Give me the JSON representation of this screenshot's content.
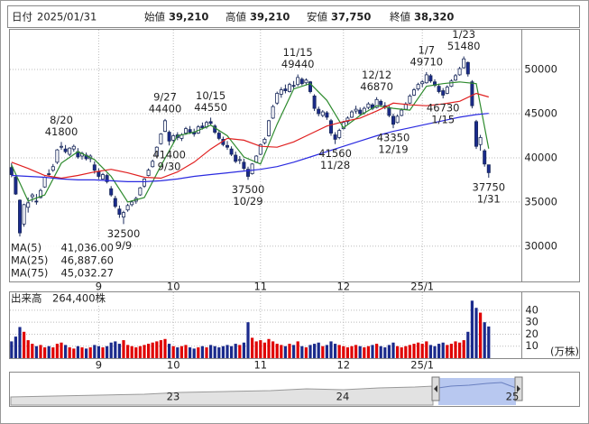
{
  "chart_data": {
    "type": "candlestick",
    "header": {
      "date_label": "日付",
      "date": "2025/01/31",
      "items": [
        {
          "name": "始値",
          "value": "39,210",
          "color": "#111111"
        },
        {
          "name": "高値",
          "value": "39,210",
          "color": "#e00000"
        },
        {
          "name": "安値",
          "value": "37,750",
          "color": "#008000"
        },
        {
          "name": "終値",
          "value": "38,320",
          "color": "#111111"
        }
      ]
    },
    "ylim": [
      26000,
      54500
    ],
    "yticks": [
      30000,
      35000,
      40000,
      45000,
      50000
    ],
    "grid": true,
    "up_color": "#ffffff",
    "down_color": "#1a2a8c",
    "candle_edge": "#1a2a5c",
    "xticks": [
      {
        "value": 21,
        "label": "9"
      },
      {
        "value": 39,
        "label": "10"
      },
      {
        "value": 60,
        "label": "11"
      },
      {
        "value": 80,
        "label": "12"
      },
      {
        "value": 99,
        "label": "25/1"
      }
    ],
    "ohlc": [
      [
        38900,
        39400,
        37800,
        38100
      ],
      [
        37800,
        38000,
        35800,
        35900
      ],
      [
        35200,
        35300,
        31100,
        31500
      ],
      [
        32500,
        34800,
        32200,
        34700
      ],
      [
        34400,
        35500,
        33800,
        34900
      ],
      [
        35600,
        36000,
        35000,
        35800
      ],
      [
        35100,
        35900,
        34700,
        35000
      ],
      [
        35500,
        36500,
        35400,
        36300
      ],
      [
        36700,
        37900,
        36600,
        37800
      ],
      [
        38200,
        38700,
        37900,
        38100
      ],
      [
        38600,
        39300,
        38400,
        39000
      ],
      [
        39500,
        41000,
        39300,
        40900
      ],
      [
        41200,
        41800,
        40900,
        41300
      ],
      [
        41000,
        41450,
        40500,
        40700
      ],
      [
        40400,
        41200,
        40200,
        41100
      ],
      [
        41000,
        41500,
        40700,
        41300
      ],
      [
        40700,
        41100,
        39900,
        40100
      ],
      [
        40200,
        40700,
        39800,
        40500
      ],
      [
        40300,
        40600,
        39700,
        39900
      ],
      [
        39900,
        40400,
        39500,
        40200
      ],
      [
        39200,
        39600,
        38200,
        38600
      ],
      [
        38400,
        38800,
        37600,
        37900
      ],
      [
        37600,
        38300,
        37550,
        38100
      ],
      [
        38000,
        38200,
        37100,
        37300
      ],
      [
        36500,
        36800,
        35600,
        35800
      ],
      [
        35400,
        35700,
        34300,
        34500
      ],
      [
        34200,
        34600,
        33200,
        33600
      ],
      [
        33300,
        34000,
        32500,
        33800
      ],
      [
        34100,
        34800,
        33900,
        34600
      ],
      [
        34700,
        35200,
        34500,
        35000
      ],
      [
        35100,
        35600,
        34800,
        35400
      ],
      [
        35800,
        36700,
        35700,
        36600
      ],
      [
        36800,
        37700,
        36600,
        37600
      ],
      [
        38000,
        38800,
        37900,
        38600
      ],
      [
        39000,
        39800,
        38900,
        39600
      ],
      [
        40200,
        41300,
        40000,
        41200
      ],
      [
        41600,
        42800,
        41500,
        42700
      ],
      [
        43000,
        44400,
        42900,
        44200
      ],
      [
        42900,
        43100,
        41400,
        41900
      ],
      [
        42000,
        42700,
        41700,
        42500
      ],
      [
        42600,
        42900,
        42000,
        42300
      ],
      [
        42200,
        42800,
        41900,
        42600
      ],
      [
        42800,
        43500,
        42600,
        43300
      ],
      [
        43200,
        43600,
        42700,
        42900
      ],
      [
        42900,
        43300,
        42400,
        42700
      ],
      [
        42800,
        43700,
        42700,
        43500
      ],
      [
        43600,
        44000,
        43200,
        43400
      ],
      [
        43500,
        44200,
        43300,
        44000
      ],
      [
        44100,
        44550,
        43700,
        43900
      ],
      [
        43600,
        43800,
        42700,
        42900
      ],
      [
        42800,
        43100,
        42000,
        42200
      ],
      [
        42100,
        42400,
        41300,
        41500
      ],
      [
        41400,
        41900,
        40900,
        41200
      ],
      [
        41000,
        41300,
        40200,
        40400
      ],
      [
        40300,
        40700,
        39400,
        39600
      ],
      [
        39700,
        40200,
        39300,
        39800
      ],
      [
        39500,
        39900,
        38600,
        38800
      ],
      [
        38700,
        39000,
        37500,
        37900
      ],
      [
        38200,
        39400,
        38100,
        39300
      ],
      [
        39500,
        40300,
        39400,
        40200
      ],
      [
        40400,
        41600,
        40300,
        41500
      ],
      [
        41700,
        42300,
        41500,
        42100
      ],
      [
        42500,
        44300,
        42400,
        44200
      ],
      [
        44500,
        46000,
        44400,
        45800
      ],
      [
        46200,
        47500,
        46000,
        47300
      ],
      [
        47200,
        48000,
        46800,
        47700
      ],
      [
        47800,
        48300,
        47300,
        47600
      ],
      [
        47500,
        48500,
        47400,
        48300
      ],
      [
        48200,
        48700,
        47800,
        48100
      ],
      [
        48300,
        49440,
        48100,
        49100
      ],
      [
        48900,
        49100,
        48200,
        48400
      ],
      [
        48500,
        49000,
        48300,
        48800
      ],
      [
        48600,
        48700,
        47300,
        47500
      ],
      [
        47000,
        47200,
        45300,
        45600
      ],
      [
        45500,
        45800,
        44700,
        45000
      ],
      [
        44800,
        45400,
        44600,
        45200
      ],
      [
        45100,
        45300,
        44300,
        44600
      ],
      [
        44200,
        44400,
        42500,
        42800
      ],
      [
        42600,
        42900,
        41560,
        42100
      ],
      [
        42300,
        43300,
        42100,
        43100
      ],
      [
        43300,
        44200,
        43200,
        44000
      ],
      [
        44100,
        44700,
        43800,
        44500
      ],
      [
        44600,
        45400,
        44500,
        45200
      ],
      [
        45300,
        45900,
        45000,
        45500
      ],
      [
        45400,
        45700,
        44800,
        45000
      ],
      [
        45100,
        45800,
        44900,
        45600
      ],
      [
        45700,
        46300,
        45500,
        46100
      ],
      [
        46000,
        46200,
        45400,
        45600
      ],
      [
        45700,
        46870,
        45600,
        46600
      ],
      [
        46400,
        46600,
        45800,
        46000
      ],
      [
        45900,
        46300,
        45500,
        45800
      ],
      [
        45700,
        45900,
        44600,
        44800
      ],
      [
        44700,
        45000,
        43350,
        43800
      ],
      [
        44000,
        44900,
        43900,
        44700
      ],
      [
        44800,
        45600,
        44700,
        45400
      ],
      [
        45500,
        46300,
        45400,
        46100
      ],
      [
        46200,
        47200,
        46100,
        47000
      ],
      [
        47100,
        47900,
        47000,
        47700
      ],
      [
        47800,
        48500,
        47600,
        48300
      ],
      [
        48400,
        48800,
        48000,
        48600
      ],
      [
        48500,
        49710,
        48400,
        49400
      ],
      [
        49300,
        49500,
        48500,
        48700
      ],
      [
        48600,
        48900,
        48000,
        48200
      ],
      [
        48100,
        48400,
        47300,
        47500
      ],
      [
        47600,
        47900,
        46730,
        47100
      ],
      [
        47300,
        48200,
        47200,
        48000
      ],
      [
        48100,
        48900,
        48000,
        48700
      ],
      [
        48800,
        49500,
        48700,
        49300
      ],
      [
        49400,
        50300,
        49300,
        50100
      ],
      [
        50200,
        51480,
        50100,
        51200
      ],
      [
        50800,
        50900,
        49200,
        49500
      ],
      [
        48600,
        48800,
        45600,
        45900
      ],
      [
        44100,
        44300,
        41000,
        41300
      ],
      [
        41500,
        42600,
        40800,
        42300
      ],
      [
        40800,
        41000,
        39000,
        39300
      ],
      [
        39210,
        39210,
        37750,
        38320
      ]
    ],
    "annotations": [
      {
        "date": "8/20",
        "price": 41800
      },
      {
        "date": "9/9",
        "price": 32500
      },
      {
        "date": "9/27",
        "price": 44400
      },
      {
        "date": "9/30",
        "price": 41400
      },
      {
        "date": "10/15",
        "price": 44550
      },
      {
        "date": "10/29",
        "price": 37500
      },
      {
        "date": "11/15",
        "price": 49440
      },
      {
        "date": "11/28",
        "price": 41560
      },
      {
        "date": "12/12",
        "price": 46870
      },
      {
        "date": "12/19",
        "price": 43350
      },
      {
        "date": "1/7",
        "price": 49710
      },
      {
        "date": "1/15",
        "price": 46730
      },
      {
        "date": "1/23",
        "price": 51480
      },
      {
        "date": "1/31",
        "price": 37750
      }
    ],
    "ma": {
      "x": [
        0,
        4,
        8,
        12,
        16,
        20,
        24,
        28,
        32,
        36,
        40,
        44,
        48,
        52,
        56,
        60,
        64,
        68,
        72,
        76,
        80,
        84,
        88,
        92,
        96,
        100,
        104,
        108,
        112,
        115
      ],
      "series": [
        {
          "name": "MA(5)",
          "legend_value": "41,036.00",
          "color": "#2e8b2e",
          "values": [
            39200,
            35100,
            35800,
            39400,
            40700,
            39800,
            37900,
            35000,
            35500,
            39100,
            42500,
            42900,
            43700,
            42500,
            40100,
            39300,
            43800,
            47800,
            48400,
            46500,
            43400,
            44800,
            45900,
            45600,
            45400,
            48100,
            48400,
            48600,
            48400,
            41036
          ]
        },
        {
          "name": "MA(25)",
          "legend_value": "46,887.60",
          "color": "#e02020",
          "values": [
            39500,
            38800,
            38000,
            37700,
            38000,
            38400,
            38700,
            38300,
            37800,
            37700,
            38400,
            39500,
            41000,
            42200,
            42000,
            41300,
            41200,
            41800,
            42700,
            43600,
            44100,
            44500,
            45300,
            46200,
            46000,
            45900,
            46100,
            46400,
            47300,
            46887.6
          ]
        },
        {
          "name": "MA(75)",
          "legend_value": "45,032.27",
          "color": "#2a2ae0",
          "values": [
            38000,
            37900,
            37800,
            37600,
            37500,
            37500,
            37400,
            37300,
            37300,
            37400,
            37600,
            37900,
            38100,
            38300,
            38500,
            38700,
            39000,
            39500,
            40100,
            40700,
            41300,
            41900,
            42500,
            43000,
            43400,
            43800,
            44200,
            44600,
            44900,
            45032.27
          ]
        }
      ]
    },
    "volume": {
      "title": "出来高",
      "value_label": "264,400株",
      "unit": "(万株)",
      "up_color": "#e00000",
      "down_color": "#1a2a8c",
      "ylim": [
        0,
        55
      ],
      "yticks": [
        10,
        20,
        30,
        40
      ],
      "values": [
        14,
        18,
        26,
        22,
        15,
        12,
        10,
        11,
        9,
        10,
        9,
        12,
        13,
        11,
        9,
        8,
        10,
        9,
        8,
        9,
        11,
        10,
        9,
        10,
        13,
        14,
        12,
        15,
        11,
        10,
        9,
        10,
        11,
        12,
        13,
        14,
        15,
        16,
        12,
        10,
        9,
        10,
        11,
        9,
        8,
        9,
        10,
        9,
        11,
        10,
        9,
        10,
        11,
        10,
        12,
        11,
        13,
        30,
        17,
        14,
        15,
        13,
        16,
        14,
        12,
        11,
        10,
        12,
        11,
        14,
        10,
        9,
        11,
        12,
        13,
        10,
        11,
        14,
        12,
        11,
        10,
        9,
        10,
        11,
        10,
        9,
        10,
        11,
        12,
        10,
        9,
        11,
        13,
        10,
        9,
        10,
        11,
        12,
        13,
        12,
        14,
        11,
        10,
        12,
        13,
        11,
        12,
        14,
        13,
        15,
        22,
        48,
        42,
        38,
        30,
        26.44
      ]
    },
    "navigator": {
      "labels": [
        "23",
        "24",
        "25"
      ]
    }
  }
}
